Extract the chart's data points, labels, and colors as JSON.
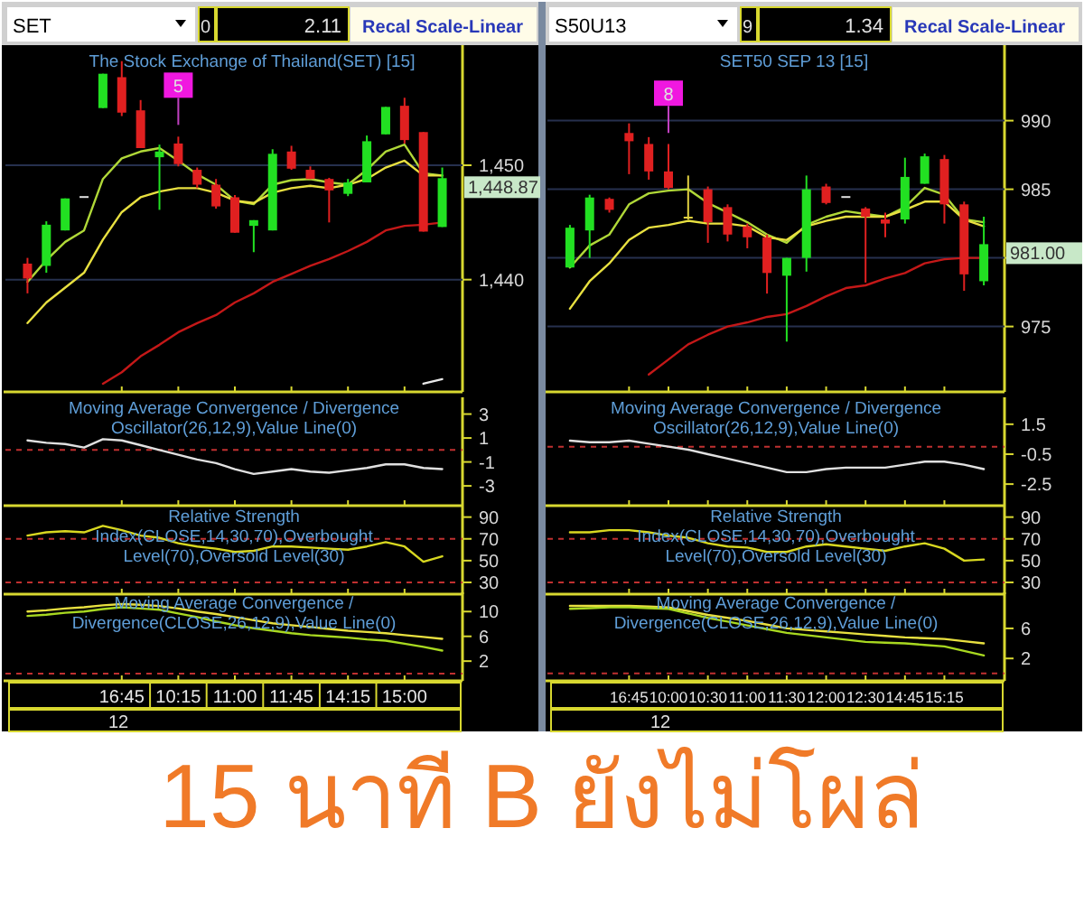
{
  "chart_data": [
    {
      "type": "candlestick",
      "title": "The Stock Exchange of Thailand(SET) [15]",
      "categories": [
        null,
        null,
        null,
        null,
        null,
        "16:45",
        null,
        null,
        "10:15",
        null,
        null,
        "11:00",
        null,
        null,
        "11:45",
        null,
        null,
        "14:15",
        null,
        null,
        "15:00",
        null,
        null
      ],
      "ohlc": [
        [
          1441.4,
          1441.9,
          1438.8,
          1440.1
        ],
        [
          1441.2,
          1445.1,
          1440.6,
          1444.8
        ],
        [
          1444.3,
          1447.1,
          1444.3,
          1447.1
        ],
        [
          1447.3,
          1447.3,
          1447.3,
          1447.3
        ],
        [
          1455.0,
          1458.0,
          1455.0,
          1458.0
        ],
        [
          1457.7,
          1459.1,
          1454.3,
          1454.6
        ],
        [
          1454.8,
          1455.7,
          1451.5,
          1451.5
        ],
        [
          1450.7,
          1451.8,
          1446.1,
          1451.2
        ],
        [
          1451.9,
          1452.5,
          1449.9,
          1450.1
        ],
        [
          1449.6,
          1449.8,
          1448.0,
          1448.3
        ],
        [
          1448.3,
          1448.8,
          1446.2,
          1446.4
        ],
        [
          1447.2,
          1447.4,
          1444.1,
          1444.1
        ],
        [
          1444.7,
          1445.2,
          1442.4,
          1445.2
        ],
        [
          1444.3,
          1451.4,
          1444.3,
          1451.0
        ],
        [
          1451.2,
          1451.7,
          1449.6,
          1449.7
        ],
        [
          1449.6,
          1449.9,
          1448.8,
          1448.8
        ],
        [
          1448.8,
          1448.9,
          1445.0,
          1447.8
        ],
        [
          1447.5,
          1448.8,
          1447.3,
          1448.5
        ],
        [
          1448.5,
          1452.6,
          1448.5,
          1452.1
        ],
        [
          1452.7,
          1455.1,
          1452.7,
          1455.1
        ],
        [
          1455.2,
          1455.9,
          1451.9,
          1452.2
        ],
        [
          1452.9,
          1452.9,
          1444.2,
          1444.2
        ],
        [
          1444.6,
          1449.8,
          1444.6,
          1448.87
        ]
      ],
      "colors": [
        "#e02020",
        "#22e022",
        "#22e022",
        "#e0e0e0",
        "#22e022",
        "#e02020",
        "#e02020",
        "#22e022",
        "#e02020",
        "#e02020",
        "#e02020",
        "#e02020",
        "#22e022",
        "#22e022",
        "#e02020",
        "#e02020",
        "#e02020",
        "#22e022",
        "#22e022",
        "#22e022",
        "#e02020",
        "#e02020",
        "#22e022"
      ],
      "series": [
        {
          "type": "line",
          "color": "#b0d838",
          "values": [
            1439.8,
            1441.7,
            1443.3,
            1444.3,
            1448.8,
            1450.6,
            1451.2,
            1451.5,
            1450.4,
            1449.2,
            1448.3,
            1446.9,
            1446.6,
            1448.3,
            1448.7,
            1448.8,
            1448.5,
            1448.3,
            1449.6,
            1451.2,
            1451.8,
            1449.3,
            1449.1
          ]
        },
        {
          "type": "line",
          "color": "#e8e040",
          "values": [
            1436.2,
            1438.0,
            1439.3,
            1440.6,
            1443.5,
            1445.9,
            1447.2,
            1447.7,
            1448.0,
            1448.0,
            1447.6,
            1446.9,
            1446.7,
            1447.6,
            1448.0,
            1448.2,
            1448.0,
            1448.3,
            1448.8,
            1449.8,
            1450.4,
            1449.1,
            1449.1
          ]
        },
        {
          "type": "line",
          "color": "#c41818",
          "values": [
            null,
            null,
            null,
            null,
            1430.9,
            1431.9,
            1433.3,
            1434.3,
            1435.4,
            1436.2,
            1436.9,
            1438.0,
            1438.8,
            1439.8,
            1440.5,
            1441.2,
            1441.8,
            1442.5,
            1443.3,
            1444.3,
            1444.7,
            1444.8,
            1445.0
          ]
        },
        {
          "type": "line",
          "color": "#e8e8e8",
          "values": [
            null,
            null,
            null,
            null,
            null,
            null,
            null,
            null,
            null,
            null,
            null,
            null,
            null,
            null,
            null,
            null,
            null,
            null,
            null,
            null,
            null,
            1430.9,
            1431.3
          ]
        }
      ],
      "ylim": [
        1430.5,
        1460.5
      ],
      "yticks": [
        {
          "value": 1440,
          "label": "1,440"
        },
        {
          "value": 1450,
          "label": "1,450"
        }
      ],
      "grid": "y",
      "tick_labels": "y",
      "annotations": [
        "SET",
        "0",
        "2.11",
        "Recal Scale-Linear",
        {
          "text": "5",
          "x": "10:15",
          "y": 1457
        },
        "1,448.87"
      ]
    },
    {
      "type": "line",
      "title": "Moving Average Convergence / Divergence Oscillator(26,12,9),Value Line(0)",
      "categories": [
        null,
        null,
        null,
        null,
        null,
        "16:45",
        null,
        null,
        "10:15",
        null,
        null,
        "11:00",
        null,
        null,
        "11:45",
        null,
        null,
        "14:15",
        null,
        null,
        "15:00",
        null,
        null
      ],
      "series": [
        {
          "color": "#e0e0e0",
          "values": [
            0.8,
            0.6,
            0.5,
            0.2,
            0.9,
            0.8,
            0.4,
            0.0,
            -0.4,
            -0.8,
            -1.1,
            -1.6,
            -2.0,
            -1.8,
            -1.6,
            -1.8,
            -1.9,
            -1.7,
            -1.5,
            -1.2,
            -1.2,
            -1.5,
            -1.6
          ]
        }
      ],
      "ylim": [
        -4.35,
        4.4
      ],
      "yticks": [
        3,
        1,
        -1,
        -3
      ],
      "tick_labels": "y",
      "ref_lines": [
        {
          "axis": "y",
          "value": 0,
          "color": "#c03030",
          "line_style": "dashed"
        }
      ]
    },
    {
      "type": "line",
      "title": "Relative Strength Index(CLOSE,14,30,70),Overbought Level(70),Oversold Level(30)",
      "categories": [
        null,
        null,
        null,
        null,
        null,
        "16:45",
        null,
        null,
        "10:15",
        null,
        null,
        "11:00",
        null,
        null,
        "11:45",
        null,
        null,
        "14:15",
        null,
        null,
        "15:00",
        null,
        null
      ],
      "series": [
        {
          "color": "#d8d820",
          "values": [
            73,
            76,
            77,
            76,
            82,
            78,
            73,
            71,
            66,
            63,
            61,
            58,
            59,
            63,
            63,
            62,
            61,
            60,
            63,
            67,
            63,
            49,
            54
          ]
        }
      ],
      "ylim": [
        22.5,
        100.5
      ],
      "yticks": [
        90,
        70,
        50,
        30
      ],
      "tick_labels": "y",
      "ref_lines": [
        {
          "axis": "y",
          "value": 70,
          "color": "#c03030",
          "line_style": "dashed"
        },
        {
          "axis": "y",
          "value": 30,
          "color": "#c03030",
          "line_style": "dashed"
        }
      ]
    },
    {
      "type": "line",
      "title": "Moving Average Convergence / Divergence(CLOSE,26,12,9),Value Line(0)",
      "categories": [
        null,
        null,
        null,
        null,
        null,
        "16:45",
        null,
        null,
        "10:15",
        null,
        null,
        "11:00",
        null,
        null,
        "11:45",
        null,
        null,
        "14:15",
        null,
        null,
        "15:00",
        null,
        null
      ],
      "series": [
        {
          "color": "#e8e040",
          "values": [
            10.0,
            10.2,
            10.5,
            10.7,
            11.0,
            11.2,
            11.1,
            10.9,
            10.5,
            10.0,
            9.6,
            9.1,
            8.6,
            8.1,
            7.8,
            7.5,
            7.2,
            6.9,
            6.7,
            6.5,
            6.2,
            5.9,
            5.6
          ]
        },
        {
          "color": "#a8d820",
          "values": [
            9.3,
            9.5,
            9.8,
            10.0,
            10.4,
            10.7,
            10.5,
            10.3,
            9.7,
            9.1,
            8.4,
            7.8,
            7.3,
            6.9,
            6.5,
            6.2,
            6.0,
            5.8,
            5.5,
            5.3,
            4.8,
            4.3,
            3.7
          ]
        }
      ],
      "ylim": [
        -0.6,
        13.1
      ],
      "yticks": [
        10,
        6,
        2
      ],
      "ref_lines": [
        {
          "axis": "y",
          "value": 0,
          "color": "#c03030",
          "line_style": "dashed"
        }
      ],
      "annotations": [
        "12"
      ]
    },
    {
      "type": "candlestick",
      "title": "SET50 SEP 13   [15]",
      "categories": [
        null,
        null,
        null,
        "16:45",
        null,
        "10:00",
        null,
        "10:30",
        null,
        "11:00",
        null,
        "11:30",
        null,
        "12:00",
        null,
        "12:30",
        null,
        "14:45",
        null,
        "15:15",
        null,
        null
      ],
      "ohlc": [
        [
          979.3,
          982.4,
          979.3,
          982.2
        ],
        [
          982.0,
          984.6,
          980.0,
          984.4
        ],
        [
          984.3,
          984.4,
          983.3,
          983.5
        ],
        [
          989.1,
          989.8,
          986.1,
          988.5
        ],
        [
          988.3,
          988.8,
          985.7,
          986.3
        ],
        [
          986.3,
          988.3,
          985.0,
          985.1
        ],
        [
          983.0,
          986.0,
          982.8,
          983.0
        ],
        [
          985.0,
          985.2,
          981.1,
          982.6
        ],
        [
          983.7,
          983.9,
          981.2,
          981.7
        ],
        [
          982.3,
          982.5,
          980.7,
          981.5
        ],
        [
          981.5,
          981.7,
          977.4,
          978.9
        ],
        [
          978.7,
          980.0,
          973.9,
          980.0
        ],
        [
          980.0,
          986.0,
          979.0,
          985.0
        ],
        [
          985.2,
          985.4,
          983.9,
          984.0
        ],
        [
          984.5,
          984.5,
          984.5,
          984.5
        ],
        [
          983.6,
          983.7,
          978.2,
          983.0
        ],
        [
          982.8,
          983.3,
          981.5,
          982.5
        ],
        [
          982.8,
          987.3,
          982.5,
          985.9
        ],
        [
          985.4,
          987.6,
          985.4,
          987.4
        ],
        [
          987.2,
          987.5,
          982.5,
          983.9
        ],
        [
          983.9,
          984.1,
          977.6,
          978.8
        ],
        [
          978.3,
          983.0,
          978.0,
          981.0
        ]
      ],
      "colors": [
        "#22e022",
        "#22e022",
        "#e02020",
        "#e02020",
        "#e02020",
        "#e02020",
        "#e0d040",
        "#e02020",
        "#e02020",
        "#e02020",
        "#e02020",
        "#22e022",
        "#22e022",
        "#e02020",
        "#e0e0e0",
        "#e02020",
        "#e02020",
        "#22e022",
        "#22e022",
        "#e02020",
        "#e02020",
        "#22e022"
      ],
      "series": [
        {
          "type": "line",
          "color": "#b0d838",
          "values": [
            979.3,
            980.9,
            981.7,
            983.9,
            984.7,
            984.9,
            985.0,
            984.0,
            983.3,
            982.6,
            981.7,
            981.1,
            982.4,
            983.0,
            983.4,
            983.2,
            983.0,
            983.7,
            985.1,
            984.6,
            982.8,
            982.6
          ]
        },
        {
          "type": "line",
          "color": "#e8e040",
          "values": [
            976.3,
            978.3,
            979.6,
            981.3,
            982.2,
            982.4,
            982.7,
            982.5,
            982.5,
            982.3,
            981.5,
            981.3,
            982.3,
            982.7,
            983.0,
            983.0,
            983.0,
            983.5,
            984.1,
            984.1,
            982.8,
            982.3
          ]
        },
        {
          "type": "line",
          "color": "#c41818",
          "values": [
            null,
            null,
            null,
            null,
            971.5,
            972.6,
            973.7,
            974.4,
            975.0,
            975.3,
            975.7,
            975.9,
            976.5,
            977.2,
            977.8,
            978.0,
            978.5,
            978.9,
            979.6,
            979.9,
            980.0,
            980.0
          ]
        }
      ],
      "ylim": [
        970.5,
        995.5
      ],
      "yticks": [
        975,
        {
          "value": 980,
          "label": null
        },
        985,
        990
      ],
      "grid": "y",
      "tick_labels": "y",
      "annotations": [
        "S50U13",
        "9",
        "1.34",
        "Recal Scale-Linear",
        {
          "text": "8",
          "x": "10:00",
          "y": 992
        },
        "981.00"
      ]
    },
    {
      "type": "line",
      "title": "Moving Average Convergence / Divergence Oscillator(26,12,9),Value Line(0)",
      "categories": [
        null,
        null,
        null,
        "16:45",
        null,
        "10:00",
        null,
        "10:30",
        null,
        "11:00",
        null,
        "11:30",
        null,
        "12:00",
        null,
        "12:30",
        null,
        "14:45",
        null,
        "15:15",
        null,
        null
      ],
      "series": [
        {
          "color": "#e0e0e0",
          "values": [
            0.4,
            0.3,
            0.3,
            0.4,
            0.2,
            0.0,
            -0.2,
            -0.5,
            -0.8,
            -1.1,
            -1.4,
            -1.7,
            -1.7,
            -1.5,
            -1.4,
            -1.4,
            -1.4,
            -1.2,
            -1.0,
            -1.0,
            -1.2,
            -1.5
          ]
        }
      ],
      "ylim": [
        -3.7,
        3.3
      ],
      "yticks": [
        1.5,
        -0.5,
        -2.5
      ],
      "tick_labels": "y",
      "ref_lines": [
        {
          "axis": "y",
          "value": 0,
          "color": "#c03030",
          "line_style": "dashed"
        }
      ]
    },
    {
      "type": "line",
      "title": "Relative Strength Index(CLOSE,14,30,70),Overbought Level(70),Oversold Level(30)",
      "categories": [
        null,
        null,
        null,
        "16:45",
        null,
        "10:00",
        null,
        "10:30",
        null,
        "11:00",
        null,
        "11:30",
        null,
        "12:00",
        null,
        "12:30",
        null,
        "14:45",
        null,
        "15:15",
        null,
        null
      ],
      "series": [
        {
          "color": "#d8d820",
          "values": [
            76,
            76,
            78,
            78,
            76,
            73,
            71,
            66,
            63,
            62,
            58,
            58,
            63,
            65,
            63,
            61,
            59,
            63,
            66,
            61,
            50,
            51
          ]
        }
      ],
      "ylim": [
        22.5,
        100.5
      ],
      "yticks": [
        90,
        70,
        50,
        30
      ],
      "tick_labels": "y",
      "ref_lines": [
        {
          "axis": "y",
          "value": 70,
          "color": "#c03030",
          "line_style": "dashed"
        },
        {
          "axis": "y",
          "value": 30,
          "color": "#c03030",
          "line_style": "dashed"
        }
      ]
    },
    {
      "type": "line",
      "title": "Moving Average Convergence / Divergence(CLOSE,26,12,9),Value Line(0)",
      "categories": [
        null,
        null,
        null,
        "16:45",
        null,
        "10:00",
        null,
        "10:30",
        null,
        "11:00",
        null,
        "11:30",
        null,
        "12:00",
        null,
        "12:30",
        null,
        "14:45",
        null,
        "15:15",
        null,
        null
      ],
      "series": [
        {
          "color": "#e8e040",
          "values": [
            9.0,
            9.0,
            9.0,
            9.0,
            8.9,
            8.8,
            8.3,
            7.8,
            7.4,
            7.0,
            6.5,
            6.0,
            5.8,
            5.6,
            5.4,
            5.2,
            5.0,
            4.8,
            4.7,
            4.6,
            4.3,
            4.0
          ]
        },
        {
          "color": "#a8d820",
          "values": [
            8.6,
            8.7,
            8.8,
            8.8,
            8.7,
            8.6,
            8.0,
            7.4,
            6.9,
            6.4,
            5.9,
            5.4,
            5.1,
            4.8,
            4.5,
            4.2,
            4.1,
            4.0,
            3.8,
            3.6,
            3.0,
            2.4
          ]
        }
      ],
      "ylim": [
        -0.5,
        10.8
      ],
      "yticks": [
        6,
        2
      ],
      "ref_lines": [
        {
          "axis": "y",
          "value": 0,
          "color": "#c03030",
          "line_style": "dashed"
        }
      ],
      "annotations": [
        "12"
      ]
    },
    {
      "type": "other",
      "title": "15 นาที B ยังไม่โผล่"
    }
  ]
}
